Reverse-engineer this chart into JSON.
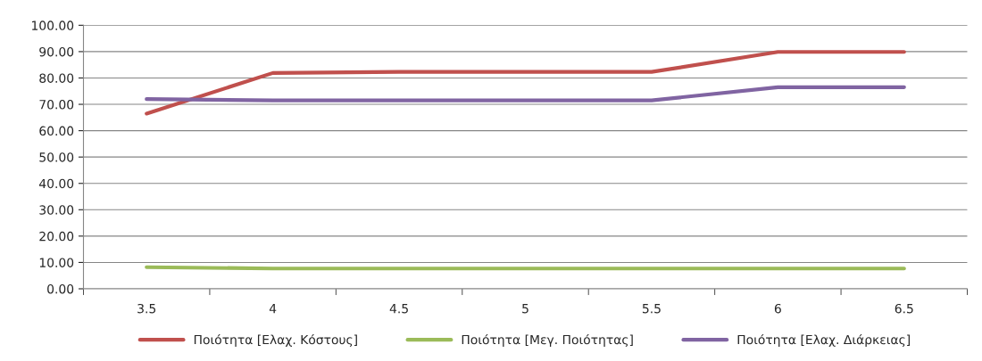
{
  "chart_data": {
    "type": "line",
    "categories": [
      "3.5",
      "4",
      "4.5",
      "5",
      "5.5",
      "6",
      "6.5"
    ],
    "series": [
      {
        "name": "Ποιότητα [Ελαχ. Κόστους]",
        "color": "#c0504d",
        "values": [
          66.5,
          81.9,
          82.3,
          82.3,
          82.3,
          89.9,
          89.9
        ]
      },
      {
        "name": "Ποιότητα [Μεγ. Ποιότητας]",
        "color": "#9bbb59",
        "values": [
          8.2,
          7.7,
          7.7,
          7.7,
          7.7,
          7.7,
          7.7
        ]
      },
      {
        "name": "Ποιότητα [Ελαχ. Διάρκειας]",
        "color": "#8064a2",
        "values": [
          72.0,
          71.5,
          71.5,
          71.5,
          71.5,
          76.5,
          76.5
        ]
      }
    ],
    "ylim": [
      0,
      100
    ],
    "yticks": [
      {
        "value": 0,
        "label": "0.00"
      },
      {
        "value": 10,
        "label": "10.00"
      },
      {
        "value": 20,
        "label": "20.00"
      },
      {
        "value": 30,
        "label": "30.00"
      },
      {
        "value": 40,
        "label": "40.00"
      },
      {
        "value": 50,
        "label": "50.00"
      },
      {
        "value": 60,
        "label": "60.00"
      },
      {
        "value": 70,
        "label": "70.00"
      },
      {
        "value": 80,
        "label": "80.00"
      },
      {
        "value": 90,
        "label": "90.00"
      },
      {
        "value": 100,
        "label": "100.00"
      }
    ],
    "grid": "y",
    "legend": "bottom",
    "marker": "none",
    "line_style": "solid"
  }
}
